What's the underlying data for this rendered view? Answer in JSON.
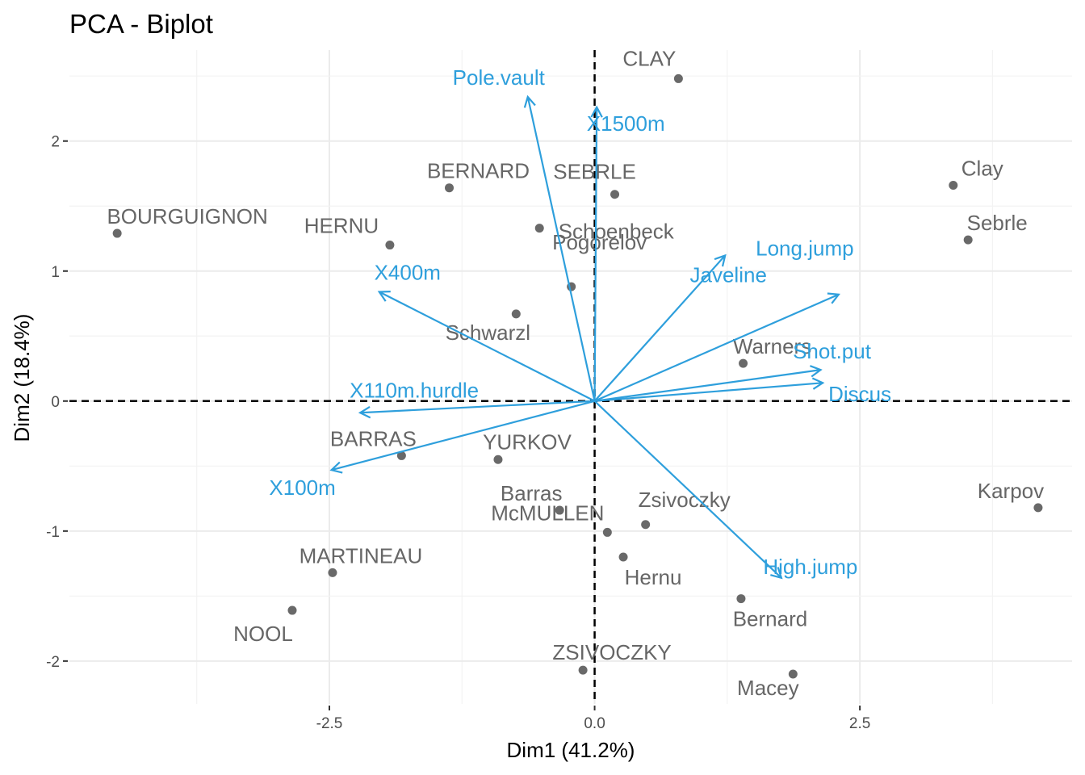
{
  "chart_data": {
    "type": "scatter",
    "title": "PCA - Biplot",
    "xlabel": "Dim1 (41.2%)",
    "ylabel": "Dim2 (18.4%)",
    "xlim": [
      -4.95,
      4.5
    ],
    "ylim": [
      -2.33,
      2.7
    ],
    "x_ticks": [
      -2.5,
      0,
      2.5
    ],
    "x_tick_labels": [
      "-2.5",
      "0.0",
      "2.5"
    ],
    "y_ticks": [
      -2,
      -1,
      0,
      1,
      2
    ],
    "y_tick_labels": [
      "-2",
      "-1",
      "0",
      "1",
      "2"
    ],
    "grid": true,
    "colors": {
      "individuals": "#696969",
      "variables": "#2e9fdc",
      "reference_lines": "#000000"
    },
    "individuals": [
      {
        "name": "SEBRLE",
        "x": 0.19,
        "y": 1.59
      },
      {
        "name": "CLAY",
        "x": 0.79,
        "y": 2.48
      },
      {
        "name": "BERNARD",
        "x": -1.37,
        "y": 1.64
      },
      {
        "name": "YURKOV",
        "x": -0.91,
        "y": -0.45
      },
      {
        "name": "ZSIVOCZKY",
        "x": -0.11,
        "y": -2.07
      },
      {
        "name": "McMULLEN",
        "x": 0.12,
        "y": -1.01
      },
      {
        "name": "MARTINEAU",
        "x": -2.47,
        "y": -1.32
      },
      {
        "name": "HERNU",
        "x": -1.93,
        "y": 1.2
      },
      {
        "name": "BARRAS",
        "x": -1.82,
        "y": -0.42
      },
      {
        "name": "NOOL",
        "x": -2.85,
        "y": -1.61
      },
      {
        "name": "BOURGUIGNON",
        "x": -4.5,
        "y": 1.29
      },
      {
        "name": "Sebrle",
        "x": 3.52,
        "y": 1.24
      },
      {
        "name": "Clay",
        "x": 3.38,
        "y": 1.66
      },
      {
        "name": "Karpov",
        "x": 4.18,
        "y": -0.82
      },
      {
        "name": "Macey",
        "x": 1.87,
        "y": -2.1
      },
      {
        "name": "Warners",
        "x": 1.4,
        "y": 0.29
      },
      {
        "name": "Zsivoczky",
        "x": 0.48,
        "y": -0.95
      },
      {
        "name": "Hernu",
        "x": 0.27,
        "y": -1.2
      },
      {
        "name": "Bernard",
        "x": 1.38,
        "y": -1.52
      },
      {
        "name": "Schwarzl",
        "x": -0.74,
        "y": 0.67
      },
      {
        "name": "Pogorelov",
        "x": -0.22,
        "y": 0.88
      },
      {
        "name": "Schoenbeck",
        "x": -0.52,
        "y": 1.33
      },
      {
        "name": "Barras",
        "x": -0.33,
        "y": -0.84
      }
    ],
    "variables": [
      {
        "name": "X100m",
        "x": -2.48,
        "y": -0.53
      },
      {
        "name": "Long.jump",
        "x": 2.3,
        "y": 0.82
      },
      {
        "name": "Shot.put",
        "x": 2.13,
        "y": 0.24
      },
      {
        "name": "High.jump",
        "x": 1.76,
        "y": -1.36
      },
      {
        "name": "X400m",
        "x": -2.03,
        "y": 0.84
      },
      {
        "name": "X110m.hurdle",
        "x": -2.21,
        "y": -0.09
      },
      {
        "name": "Discus",
        "x": 2.15,
        "y": 0.14
      },
      {
        "name": "Pole.vault",
        "x": -0.63,
        "y": 2.34
      },
      {
        "name": "Javeline",
        "x": 1.23,
        "y": 1.12
      },
      {
        "name": "X1500m",
        "x": 0.02,
        "y": 2.26
      }
    ]
  }
}
